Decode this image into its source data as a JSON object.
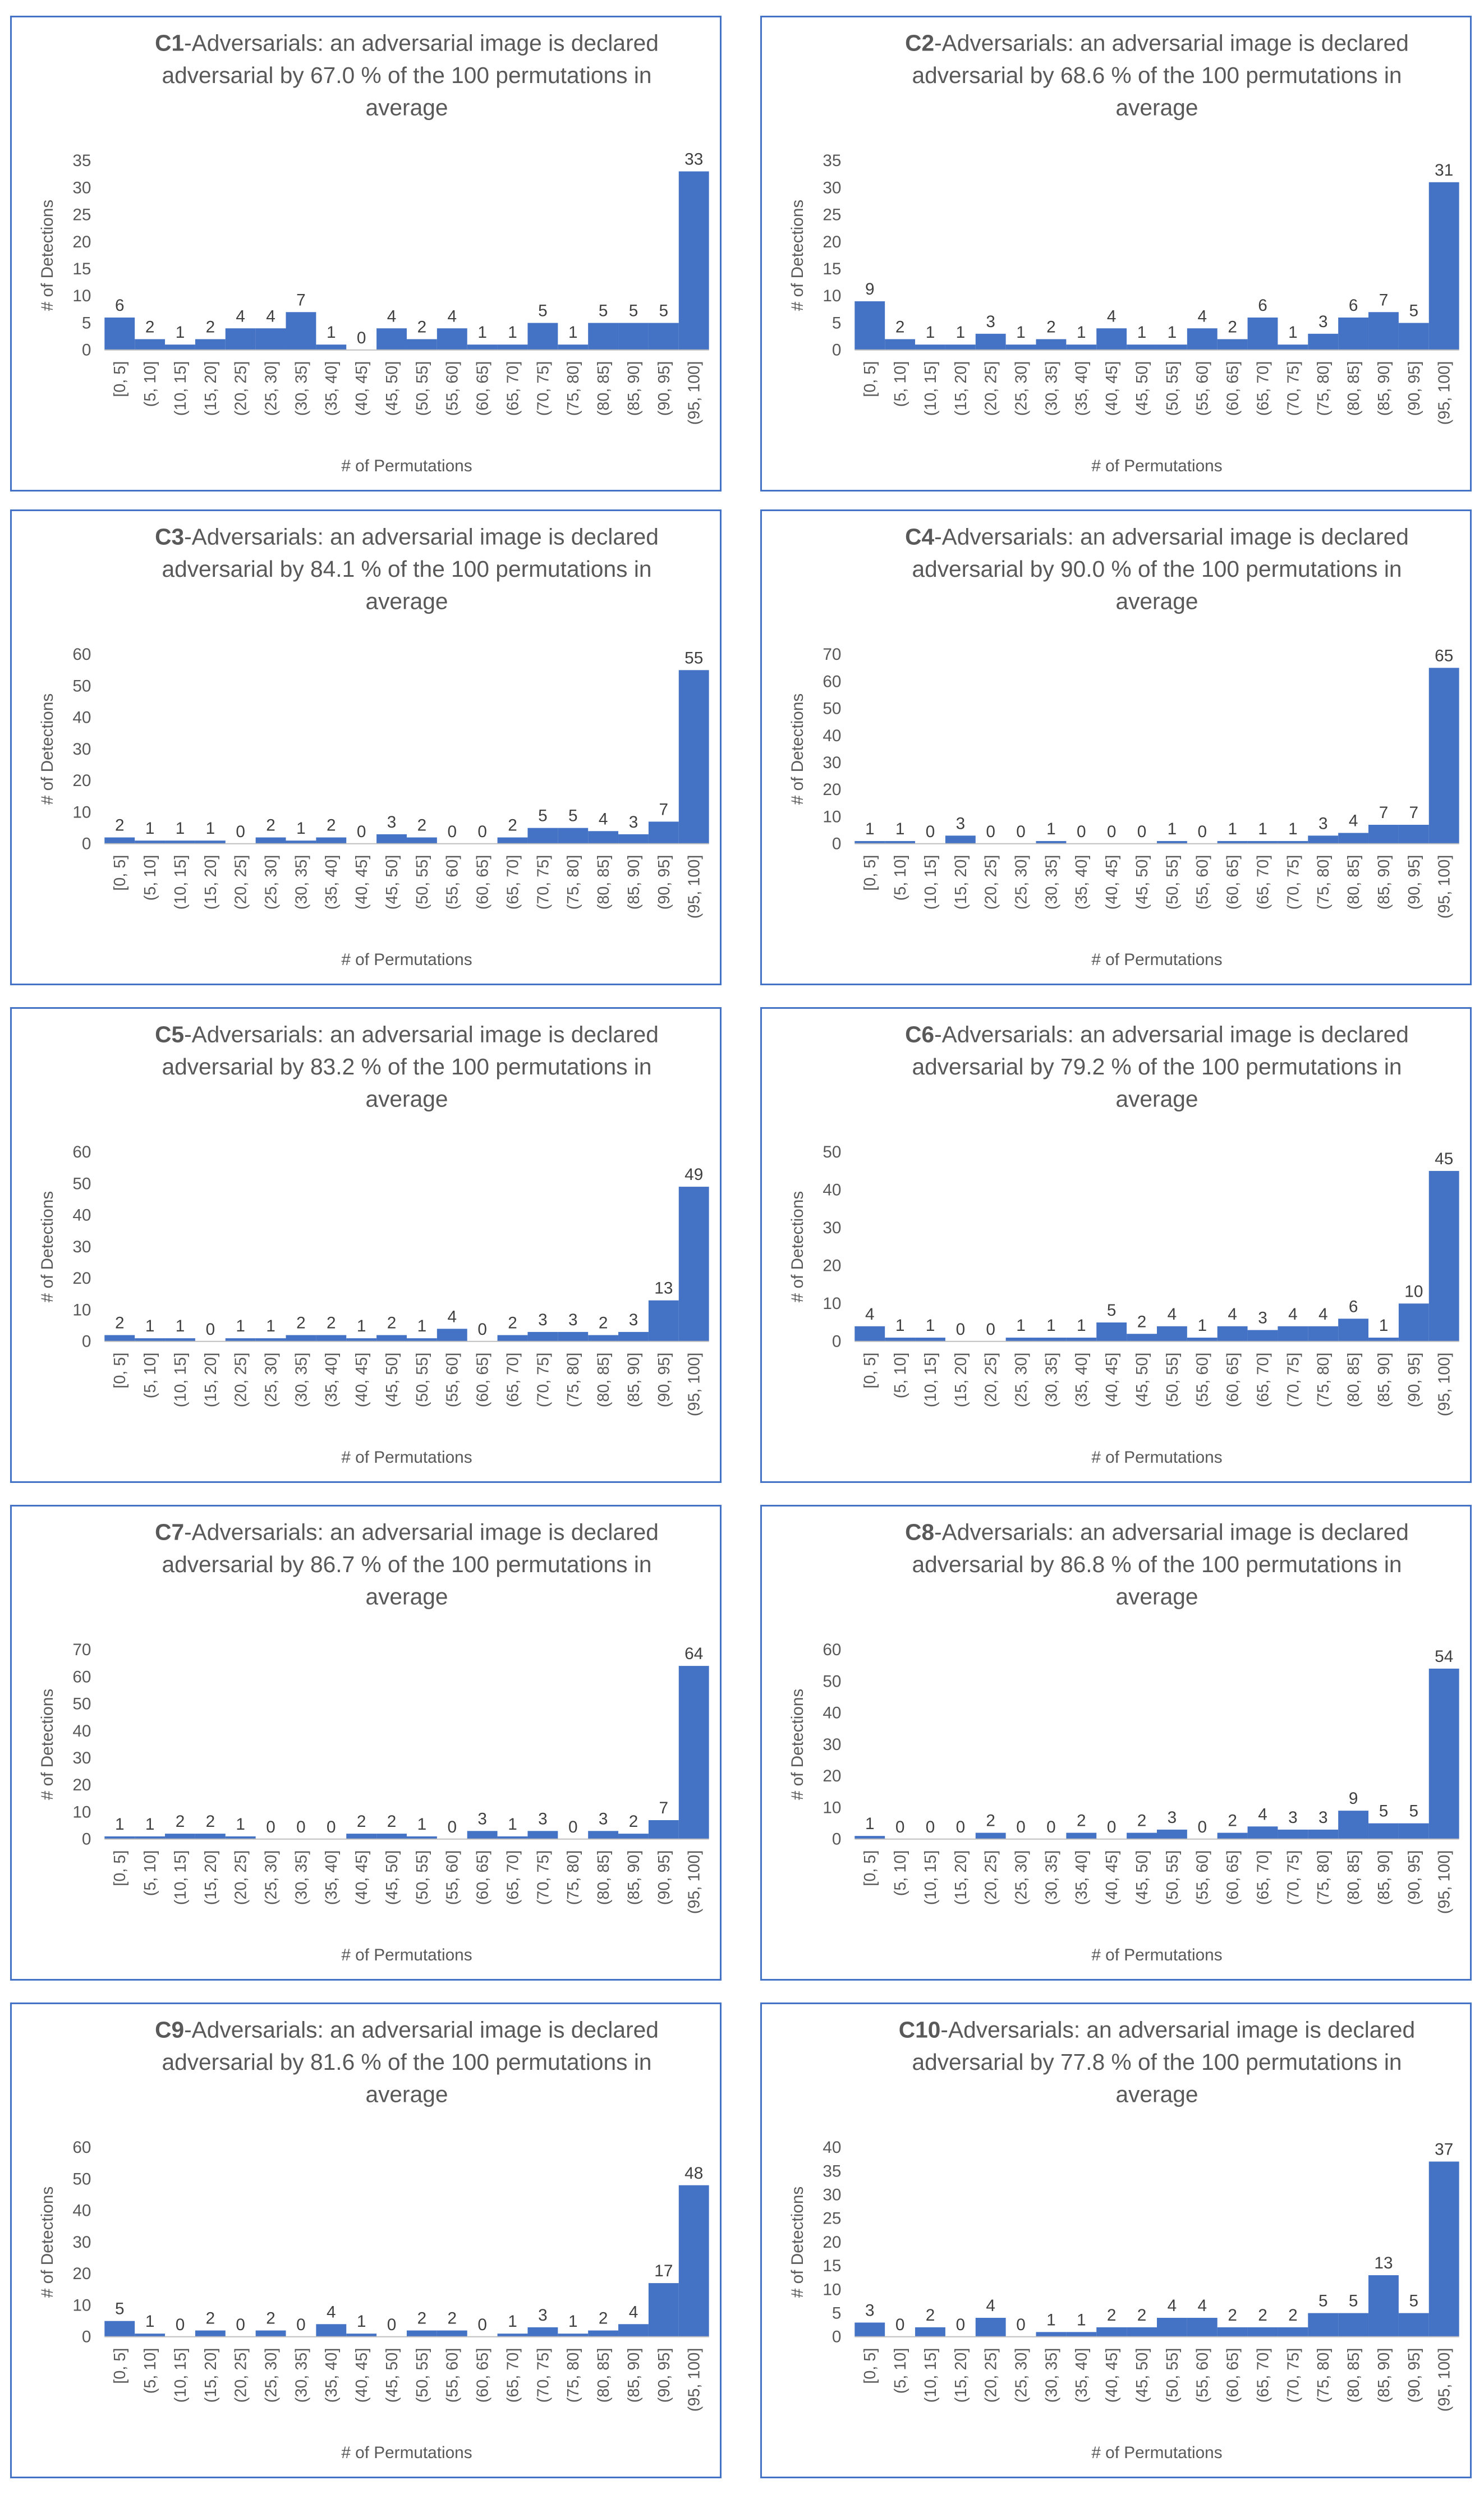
{
  "xlabel": "# of Permutations",
  "ylabel": "# of Detections",
  "title_mid": "-Adversarials: an adversarial image is declared",
  "title_line2_pre": "adversarial by ",
  "title_line2_post": " % of the 100 permutations in",
  "title_line3": "average",
  "colors": {
    "bar": "#4472c4",
    "border": "#4472c4",
    "text": "#595959"
  },
  "categories": [
    "[0, 5]",
    "(5, 10]",
    "(10, 15]",
    "(15, 20]",
    "(20, 25]",
    "(25, 30]",
    "(30, 35]",
    "(35, 40]",
    "(40, 45]",
    "(45, 50]",
    "(50, 55]",
    "(55, 60]",
    "(60, 65]",
    "(65, 70]",
    "(70, 75]",
    "(75, 80]",
    "(80, 85]",
    "(85, 90]",
    "(90, 95]",
    "(95, 100]"
  ],
  "chart_data": [
    {
      "type": "bar",
      "name": "C1",
      "percent": "67.0",
      "ylim": [
        0,
        35
      ],
      "yticks": [
        0,
        5,
        10,
        15,
        20,
        25,
        30,
        35
      ],
      "values": [
        6,
        2,
        1,
        2,
        4,
        4,
        7,
        1,
        0,
        4,
        2,
        4,
        1,
        1,
        5,
        1,
        5,
        5,
        5,
        33
      ]
    },
    {
      "type": "bar",
      "name": "C2",
      "percent": "68.6",
      "ylim": [
        0,
        35
      ],
      "yticks": [
        0,
        5,
        10,
        15,
        20,
        25,
        30,
        35
      ],
      "values": [
        9,
        2,
        1,
        1,
        3,
        1,
        2,
        1,
        4,
        1,
        1,
        4,
        2,
        6,
        1,
        3,
        6,
        7,
        5,
        31
      ]
    },
    {
      "type": "bar",
      "name": "C3",
      "percent": "84.1",
      "ylim": [
        0,
        60
      ],
      "yticks": [
        0,
        10,
        20,
        30,
        40,
        50,
        60
      ],
      "values": [
        2,
        1,
        1,
        1,
        0,
        2,
        1,
        2,
        0,
        3,
        2,
        0,
        0,
        2,
        5,
        5,
        4,
        3,
        7,
        55
      ]
    },
    {
      "type": "bar",
      "name": "C4",
      "percent": "90.0",
      "ylim": [
        0,
        70
      ],
      "yticks": [
        0,
        10,
        20,
        30,
        40,
        50,
        60,
        70
      ],
      "values": [
        1,
        1,
        0,
        3,
        0,
        0,
        1,
        0,
        0,
        0,
        1,
        0,
        1,
        1,
        1,
        3,
        4,
        7,
        7,
        65
      ]
    },
    {
      "type": "bar",
      "name": "C5",
      "percent": "83.2",
      "ylim": [
        0,
        60
      ],
      "yticks": [
        0,
        10,
        20,
        30,
        40,
        50,
        60
      ],
      "values": [
        2,
        1,
        1,
        0,
        1,
        1,
        2,
        2,
        1,
        2,
        1,
        4,
        0,
        2,
        3,
        3,
        2,
        3,
        13,
        49
      ]
    },
    {
      "type": "bar",
      "name": "C6",
      "percent": "79.2",
      "ylim": [
        0,
        50
      ],
      "yticks": [
        0,
        10,
        20,
        30,
        40,
        50
      ],
      "values": [
        4,
        1,
        1,
        0,
        0,
        1,
        1,
        1,
        5,
        2,
        4,
        1,
        4,
        3,
        4,
        4,
        6,
        1,
        10,
        45
      ]
    },
    {
      "type": "bar",
      "name": "C7",
      "percent": "86.7",
      "ylim": [
        0,
        70
      ],
      "yticks": [
        0,
        10,
        20,
        30,
        40,
        50,
        60,
        70
      ],
      "values": [
        1,
        1,
        2,
        2,
        1,
        0,
        0,
        0,
        2,
        2,
        1,
        0,
        3,
        1,
        3,
        0,
        3,
        2,
        7,
        64
      ]
    },
    {
      "type": "bar",
      "name": "C8",
      "percent": "86.8",
      "ylim": [
        0,
        60
      ],
      "yticks": [
        0,
        10,
        20,
        30,
        40,
        50,
        60
      ],
      "values": [
        1,
        0,
        0,
        0,
        2,
        0,
        0,
        2,
        0,
        2,
        3,
        0,
        2,
        4,
        3,
        3,
        9,
        5,
        5,
        54
      ]
    },
    {
      "type": "bar",
      "name": "C9",
      "percent": "81.6",
      "ylim": [
        0,
        60
      ],
      "yticks": [
        0,
        10,
        20,
        30,
        40,
        50,
        60
      ],
      "values": [
        5,
        1,
        0,
        2,
        0,
        2,
        0,
        4,
        1,
        0,
        2,
        2,
        0,
        1,
        3,
        1,
        2,
        4,
        17,
        48
      ]
    },
    {
      "type": "bar",
      "name": "C10",
      "percent": "77.8",
      "ylim": [
        0,
        40
      ],
      "yticks": [
        0,
        5,
        10,
        15,
        20,
        25,
        30,
        35,
        40
      ],
      "values": [
        3,
        0,
        2,
        0,
        4,
        0,
        1,
        1,
        2,
        2,
        4,
        4,
        2,
        2,
        2,
        5,
        5,
        13,
        5,
        37
      ]
    }
  ]
}
